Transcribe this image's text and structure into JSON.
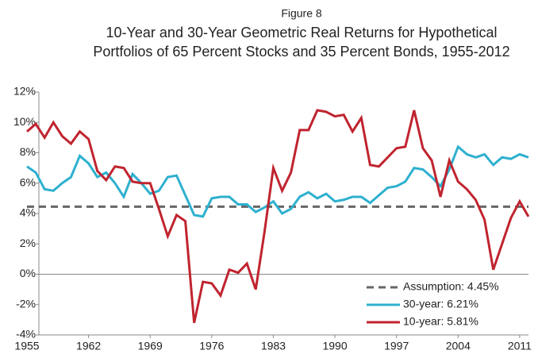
{
  "chart_data": {
    "type": "line",
    "figure_label": "Figure 8",
    "title_lines": [
      "10-Year and 30-Year Geometric Real Returns for Hypothetical",
      "Portfolios of 65 Percent Stocks and 35 Percent Bonds, 1955-2012"
    ],
    "x": [
      1955,
      1956,
      1957,
      1958,
      1959,
      1960,
      1961,
      1962,
      1963,
      1964,
      1965,
      1966,
      1967,
      1968,
      1969,
      1970,
      1971,
      1972,
      1973,
      1974,
      1975,
      1976,
      1977,
      1978,
      1979,
      1980,
      1981,
      1982,
      1983,
      1984,
      1985,
      1986,
      1987,
      1988,
      1989,
      1990,
      1991,
      1992,
      1993,
      1994,
      1995,
      1996,
      1997,
      1998,
      1999,
      2000,
      2001,
      2002,
      2003,
      2004,
      2005,
      2006,
      2007,
      2008,
      2009,
      2010,
      2011,
      2012
    ],
    "reference_line": {
      "name": "Assumption: 4.45%",
      "value": 4.45,
      "color": "#666666"
    },
    "series": [
      {
        "name": "30-year: 6.21%",
        "color": "#2eb0cf",
        "values": [
          7.1,
          6.7,
          5.6,
          5.5,
          6.0,
          6.4,
          7.8,
          7.3,
          6.4,
          6.7,
          6.0,
          5.1,
          6.6,
          6.0,
          5.3,
          5.5,
          6.4,
          6.5,
          5.2,
          3.9,
          3.8,
          5.0,
          5.1,
          5.1,
          4.6,
          4.6,
          4.1,
          4.4,
          4.8,
          4.0,
          4.3,
          5.1,
          5.4,
          5.0,
          5.3,
          4.8,
          4.9,
          5.1,
          5.1,
          4.7,
          5.2,
          5.7,
          5.8,
          6.1,
          7.0,
          6.9,
          6.4,
          5.8,
          6.9,
          8.4,
          7.9,
          7.7,
          7.9,
          7.2,
          7.7,
          7.6,
          7.9,
          7.7
        ]
      },
      {
        "name": "10-year: 5.81%",
        "color": "#c0242f",
        "values": [
          9.4,
          9.9,
          9.0,
          10.0,
          9.1,
          8.6,
          9.4,
          8.9,
          6.8,
          6.2,
          7.1,
          7.0,
          6.1,
          6.0,
          6.0,
          4.3,
          2.5,
          3.9,
          3.5,
          -3.2,
          -0.5,
          -0.6,
          -1.4,
          0.3,
          0.1,
          0.7,
          -1.0,
          2.8,
          7.0,
          5.5,
          6.7,
          9.5,
          9.5,
          10.8,
          10.7,
          10.4,
          10.5,
          9.4,
          10.3,
          7.2,
          7.1,
          7.7,
          8.3,
          8.4,
          10.8,
          8.3,
          7.5,
          5.1,
          7.5,
          6.1,
          5.6,
          4.9,
          3.6,
          0.3,
          2.0,
          3.7,
          4.8,
          3.8
        ]
      }
    ],
    "xlim": [
      1955,
      2012
    ],
    "xticks": [
      1955,
      1962,
      1969,
      1976,
      1983,
      1990,
      1997,
      2004,
      2011
    ],
    "ylim": [
      -4,
      12
    ],
    "yticks": [
      {
        "value": -4,
        "label": "-4%"
      },
      {
        "value": -2,
        "label": "-2%"
      },
      {
        "value": 0,
        "label": "0%"
      },
      {
        "value": 2,
        "label": "2%"
      },
      {
        "value": 4,
        "label": "4%"
      },
      {
        "value": 6,
        "label": "6%"
      },
      {
        "value": 8,
        "label": "8%"
      },
      {
        "value": 10,
        "label": "10%"
      },
      {
        "value": 12,
        "label": "12%"
      }
    ],
    "grid": true
  }
}
